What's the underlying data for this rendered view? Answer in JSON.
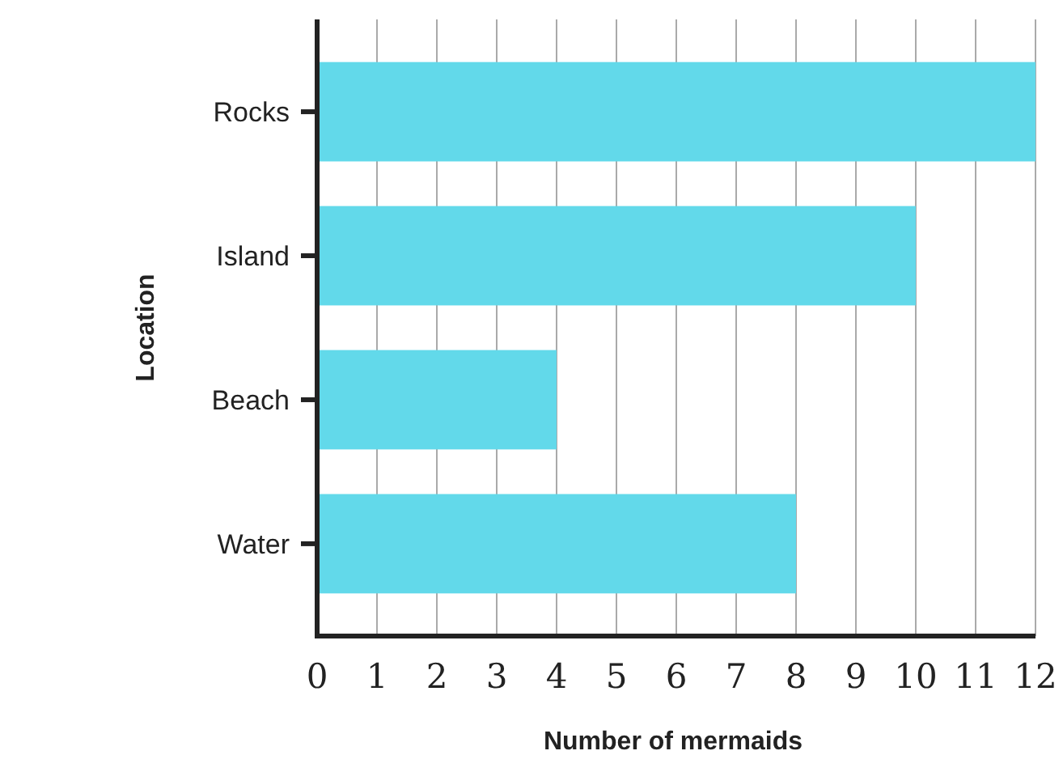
{
  "chart_data": {
    "type": "bar",
    "orientation": "horizontal",
    "xlabel": "Number of mermaids",
    "ylabel": "Location",
    "categories": [
      "Rocks",
      "Island",
      "Beach",
      "Water"
    ],
    "values": [
      12,
      10,
      4,
      8
    ],
    "color": "#62d9ea",
    "xlim": [
      0,
      12
    ],
    "xticks": [
      0,
      1,
      2,
      3,
      4,
      5,
      6,
      7,
      8,
      9,
      10,
      11,
      12
    ],
    "grid": "x"
  }
}
